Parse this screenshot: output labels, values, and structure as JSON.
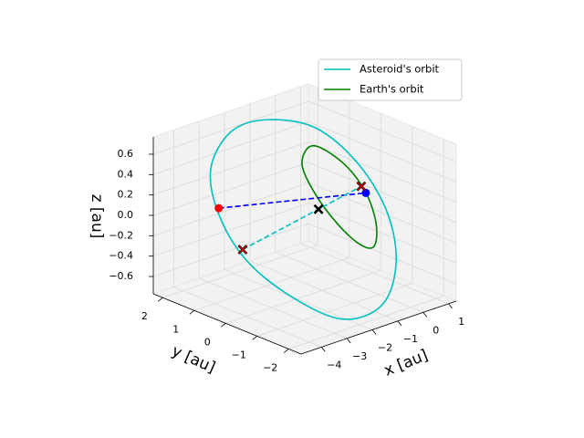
{
  "chart_data": {
    "type": "line3d",
    "xlabel": "x [au]",
    "ylabel": "y [au]",
    "zlabel": "z [au]",
    "xlim": [
      -4.8,
      1.3
    ],
    "ylim": [
      -2.4,
      2.3
    ],
    "zlim": [
      -0.77,
      0.77
    ],
    "xticks": [
      {
        "value": -4,
        "label": "−4"
      },
      {
        "value": -3,
        "label": "−3"
      },
      {
        "value": -2,
        "label": "−2"
      },
      {
        "value": -1,
        "label": "−1"
      },
      0,
      1
    ],
    "yticks": [
      {
        "value": -2,
        "label": "−2"
      },
      {
        "value": -1,
        "label": "−1"
      },
      0,
      1,
      2
    ],
    "zticks": [
      {
        "value": -0.6,
        "label": "−0.6"
      },
      {
        "value": -0.4,
        "label": "−0.4"
      },
      {
        "value": -0.2,
        "label": "−0.2"
      },
      {
        "value": 0,
        "label": "0.0"
      },
      0.2,
      0.4,
      0.6
    ],
    "grid": true,
    "legend": "upper right",
    "series": [
      {
        "name": "Asteroid's orbit",
        "color": "#00bfbf",
        "x": [
          -2.49,
          -1.6,
          -0.83,
          -0.32,
          -0.18,
          -0.43,
          -1.12,
          -2.0,
          -2.81,
          -3.29,
          -3.43,
          -3.09
        ],
        "y": [
          0.63,
          -0.25,
          -1.02,
          -1.54,
          -1.68,
          -1.42,
          -0.73,
          0.15,
          0.95,
          1.44,
          1.58,
          1.24
        ],
        "z": [
          0.95,
          0.91,
          0.58,
          0.11,
          -0.38,
          -0.79,
          -0.95,
          -0.77,
          -0.44,
          -0.01,
          0.43,
          0.8
        ]
      },
      {
        "name": "Earth's orbit",
        "color": "#008000",
        "x": [
          -2.01,
          -0.86,
          0.04,
          0.47,
          0.4,
          -0.14,
          -1.04,
          -1.94,
          -2.44
        ],
        "y": [
          -0.52,
          -0.52,
          -0.52,
          -0.52,
          -0.52,
          -0.52,
          -0.52,
          -0.52,
          -0.52
        ],
        "z": [
          0.8,
          0.54,
          0.18,
          -0.17,
          -0.39,
          -0.33,
          -0.05,
          0.33,
          0.66
        ]
      }
    ],
    "dashed_lines": [
      {
        "color": "#0000ff",
        "x": [
          -3.29,
          0.07
        ],
        "y": [
          1.44,
          -0.52
        ],
        "z": [
          0.05,
          0.16
        ]
      },
      {
        "color": "#00bfbf",
        "x": [
          -2.92,
          -0.11
        ],
        "y": [
          0.98,
          -0.52
        ],
        "z": [
          -0.33,
          0.24
        ]
      }
    ],
    "points": [
      {
        "marker": "o",
        "color": "#ff0000",
        "x": -3.29,
        "y": 1.44,
        "z": 0.05
      },
      {
        "marker": "o",
        "color": "#0000ff",
        "x": 0.07,
        "y": -0.52,
        "z": 0.16
      },
      {
        "marker": "x",
        "color": "#ff0000",
        "edgecolor": "#000000",
        "x": -2.92,
        "y": 0.98,
        "z": -0.33
      },
      {
        "marker": "x",
        "color": "#ff0000",
        "edgecolor": "#000000",
        "x": -0.11,
        "y": -0.52,
        "z": 0.24
      },
      {
        "marker": "x",
        "color": "#000000",
        "edgecolor": "#000000",
        "x": -1.21,
        "y": -0.05,
        "z": 0.05
      }
    ]
  }
}
